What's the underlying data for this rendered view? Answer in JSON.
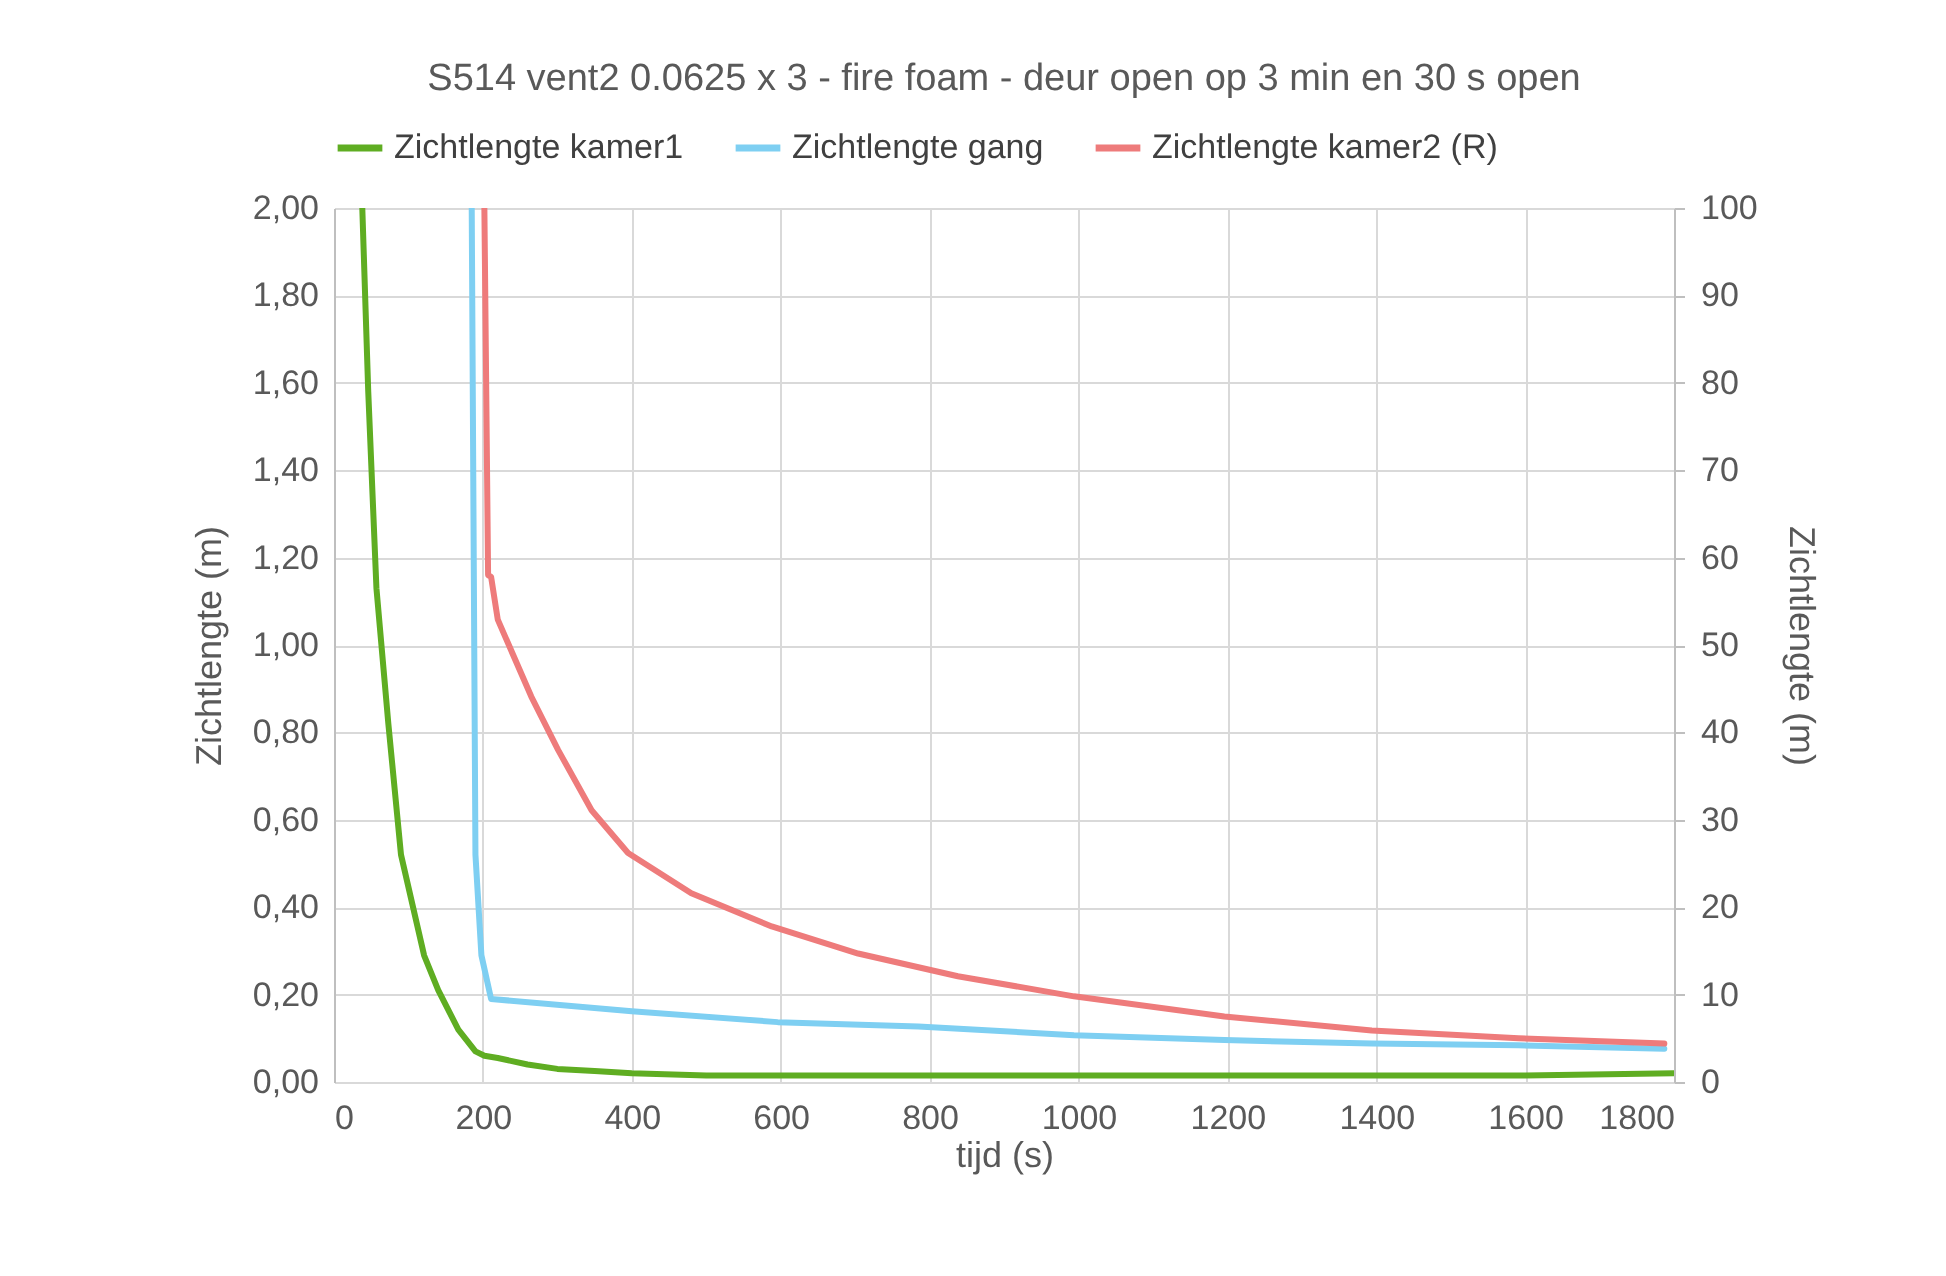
{
  "chart_data": {
    "type": "line",
    "title": "S514   vent2 0.0625 x 3 - fire foam - deur open op 3 min en 30 s open",
    "xlabel": "tijd (s)",
    "ylabel": "Zichtlengte (m)",
    "y2label": "Zichtlengte (m)",
    "xlim": [
      0,
      1800
    ],
    "xticks": [
      0,
      200,
      400,
      600,
      800,
      1000,
      1200,
      1400,
      1600,
      1800
    ],
    "ylim": [
      0,
      2
    ],
    "yticks": [
      {
        "value": 0,
        "label": "0,00"
      },
      {
        "value": 0.2,
        "label": "0,20"
      },
      {
        "value": 0.4,
        "label": "0,40"
      },
      {
        "value": 0.6,
        "label": "0,60"
      },
      {
        "value": 0.8,
        "label": "0,80"
      },
      {
        "value": 1,
        "label": "1,00"
      },
      {
        "value": 1.2,
        "label": "1,20"
      },
      {
        "value": 1.4,
        "label": "1,40"
      },
      {
        "value": 1.6,
        "label": "1,60"
      },
      {
        "value": 1.8,
        "label": "1,80"
      },
      {
        "value": 2,
        "label": "2,00"
      }
    ],
    "y2lim": [
      0,
      100
    ],
    "y2ticks": [
      0,
      10,
      20,
      30,
      40,
      50,
      60,
      70,
      80,
      90,
      100
    ],
    "grid": true,
    "legend": "top",
    "line_style": "solid",
    "series": [
      {
        "name": "Zichtlengte kamer1",
        "color": "#5fad22",
        "x": [
          38,
          46,
          57,
          73,
          90,
          121,
          140,
          167,
          190,
          202,
          220,
          260,
          300,
          350,
          400,
          500,
          600,
          800,
          1000,
          1200,
          1400,
          1600,
          1800
        ],
        "values": [
          2.0,
          1.58,
          1.13,
          0.82,
          0.52,
          0.29,
          0.21,
          0.12,
          0.07,
          0.06,
          0.055,
          0.04,
          0.03,
          0.025,
          0.02,
          0.015,
          0.015,
          0.015,
          0.015,
          0.015,
          0.015,
          0.015,
          0.02
        ]
      },
      {
        "name": "Zichtlengte gang",
        "color": "#7ecff2",
        "x": [
          185,
          190,
          198,
          211,
          400,
          596,
          785,
          994,
          1196,
          1394,
          1591,
          1787
        ],
        "values": [
          2.0,
          0.52,
          0.29,
          0.19,
          0.162,
          0.137,
          0.127,
          0.107,
          0.096,
          0.088,
          0.084,
          0.076
        ]
      },
      {
        "name": "Zichtlengte kamer2 (R)",
        "color": "#ee7b7b",
        "axis": "y2",
        "x": [
          202,
          207,
          211,
          220,
          265,
          301,
          346,
          395,
          480,
          588,
          704,
          838,
          994,
          1196,
          1394,
          1591,
          1787
        ],
        "values": [
          100,
          58,
          57.8,
          52.9,
          44.1,
          38,
          31.1,
          26.2,
          21.6,
          17.8,
          14.7,
          12.1,
          9.8,
          7.5,
          5.9,
          5.0,
          4.4
        ]
      }
    ]
  }
}
